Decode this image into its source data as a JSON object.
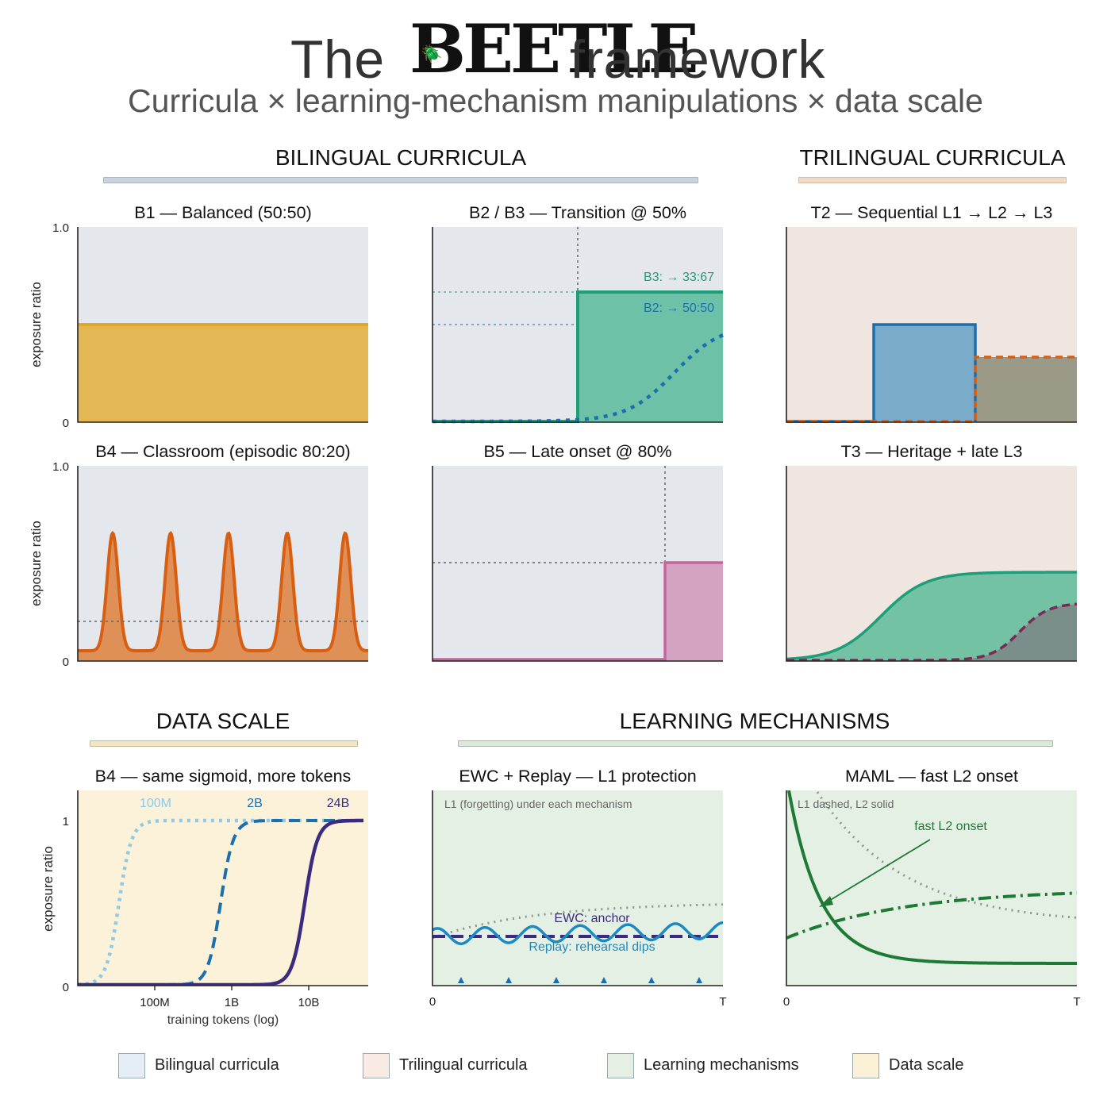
{
  "header": {
    "title_prefix": "The",
    "logo_text": "BEETLE",
    "title_suffix": "framework",
    "subtitle": "Curricula  ×  learning-mechanism manipulations  ×  data scale"
  },
  "sections": {
    "bilingual": "BILINGUAL CURRICULA",
    "trilingual": "TRILINGUAL CURRICULA",
    "data_scale": "DATA SCALE",
    "learning": "LEARNING MECHANISMS"
  },
  "panels": {
    "b1": {
      "title": "B1 — Balanced (50:50)",
      "ylabel": "exposure ratio",
      "y_top": "1.0",
      "y_bottom": "0"
    },
    "b23": {
      "title": "B2 / B3 — Transition @ 50%",
      "b3_label": "B3: → 33:67",
      "b2_label": "B2: → 50:50"
    },
    "t2": {
      "title": "T2 — Sequential L1 → L2 → L3"
    },
    "b4": {
      "title": "B4 — Classroom (episodic 80:20)",
      "ylabel": "exposure ratio",
      "y_top": "1.0",
      "y_bottom": "0"
    },
    "b5": {
      "title": "B5 — Late onset @ 80%"
    },
    "t3": {
      "title": "T3 — Heritage + late L3"
    },
    "scale": {
      "title": "B4 — same sigmoid, more tokens",
      "ylabel": "exposure ratio",
      "xlabel": "training tokens (log)",
      "y_ticks": [
        "1",
        "0"
      ],
      "x_ticks": [
        "100M",
        "1B",
        "10B"
      ],
      "series_labels": [
        "100M",
        "2B",
        "24B"
      ]
    },
    "ewc": {
      "title": "EWC + Replay — L1 protection",
      "note": "L1 (forgetting) under each mechanism",
      "ewc_label": "EWC: anchor",
      "replay_label": "Replay: rehearsal dips",
      "x_start": "0",
      "x_end": "T"
    },
    "maml": {
      "title": "MAML — fast L2 onset",
      "note": "L1 dashed,  L2 solid",
      "annotation": "fast L2 onset",
      "x_start": "0",
      "x_end": "T"
    }
  },
  "legend": [
    {
      "label": "Bilingual curricula",
      "color": "#e6eef5"
    },
    {
      "label": "Trilingual curricula",
      "color": "#f9ebe3"
    },
    {
      "label": "Learning mechanisms",
      "color": "#e5efe3"
    },
    {
      "label": "Data scale",
      "color": "#faf1d6"
    }
  ],
  "colors": {
    "bilingual_bg": "#e4e8ec",
    "trilingual_bg": "#f0e6e1",
    "learning_bg": "#e5f0e4",
    "scale_bg": "#fbf2d9",
    "gold": "#e3a823",
    "teal": "#1d9e78",
    "blue": "#1c6fad",
    "orange": "#d85f12",
    "pink": "#c7649e",
    "plum": "#7a2a57",
    "navy": "#3b2a80",
    "light_blue": "#8ec9e6",
    "green": "#1d7a34"
  },
  "chart_data": [
    {
      "type": "area",
      "panel": "B1 — Balanced (50:50)",
      "x": [
        0,
        1
      ],
      "y": [
        0.5,
        0.5
      ],
      "ylim": [
        0,
        1
      ]
    },
    {
      "type": "line",
      "panel": "B2 / B3 — Transition @ 50%",
      "series": [
        {
          "name": "B3: → 33:67",
          "x": [
            0,
            0.5,
            0.5,
            1
          ],
          "y": [
            0,
            0,
            0.67,
            0.67
          ]
        },
        {
          "name": "B2: → 50:50",
          "shape": "sigmoid",
          "midpoint": 0.7,
          "plateau": 0.5
        }
      ],
      "transition": 0.5,
      "ylim": [
        0,
        1
      ]
    },
    {
      "type": "area",
      "panel": "T2 — Sequential L1 → L2 → L3",
      "series": [
        {
          "x": [
            0,
            0.3,
            0.3,
            0.65,
            0.65,
            1
          ],
          "y": [
            0,
            0,
            0.5,
            0.5,
            0,
            0
          ]
        },
        {
          "x": [
            0,
            0.65,
            0.65,
            1
          ],
          "y": [
            0,
            0,
            0.33,
            0.33
          ]
        }
      ],
      "ylim": [
        0,
        1
      ]
    },
    {
      "type": "line",
      "panel": "B4 — Classroom (episodic 80:20)",
      "baseline": 0.05,
      "peak": 0.65,
      "peaks_at": [
        0.12,
        0.32,
        0.52,
        0.72,
        0.92
      ],
      "reference": 0.2,
      "ylim": [
        0,
        1
      ]
    },
    {
      "type": "area",
      "panel": "B5 — Late onset @ 80%",
      "x": [
        0,
        0.8,
        0.8,
        1
      ],
      "y": [
        0,
        0,
        0.5,
        0.5
      ],
      "onset": 0.8,
      "ylim": [
        0,
        1
      ]
    },
    {
      "type": "area",
      "panel": "T3 — Heritage + late L3",
      "series": [
        {
          "shape": "sigmoid",
          "midpoint": 0.32,
          "plateau": 0.45
        },
        {
          "shape": "sigmoid",
          "midpoint": 0.8,
          "plateau": 0.3
        }
      ],
      "ylim": [
        0,
        1
      ]
    },
    {
      "type": "line",
      "panel": "B4 — same sigmoid, more tokens",
      "x_scale": "log",
      "ylim": [
        0,
        1
      ],
      "series": [
        {
          "name": "100M",
          "midpoint": "30M"
        },
        {
          "name": "2B",
          "midpoint": "700M"
        },
        {
          "name": "24B",
          "midpoint": "9B"
        }
      ]
    },
    {
      "type": "line",
      "panel": "EWC + Replay — L1 protection",
      "series": [
        {
          "name": "EWC: anchor",
          "y": 0.25
        },
        {
          "name": "Replay: rehearsal dips",
          "dips": 6
        }
      ]
    },
    {
      "type": "line",
      "panel": "MAML — fast L2 onset",
      "series": [
        {
          "name": "L1",
          "style": "dashed"
        },
        {
          "name": "L2",
          "style": "solid"
        }
      ]
    }
  ]
}
